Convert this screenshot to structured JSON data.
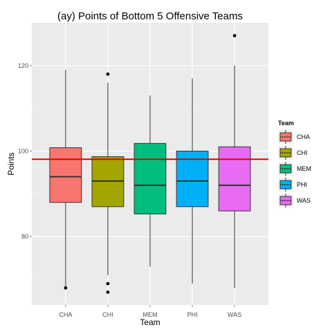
{
  "chart_data": {
    "type": "boxplot",
    "title": "(ay) Points of Bottom 5 Offensive Teams",
    "xlabel": "Team",
    "ylabel": "Points",
    "categories": [
      "CHA",
      "CHI",
      "MEM",
      "PHI",
      "WAS"
    ],
    "ylim": [
      64,
      130
    ],
    "yticks": [
      80,
      100,
      120
    ],
    "grid": true,
    "reference_line": {
      "y": 98.1,
      "color": "#e00000"
    },
    "legend": {
      "title": "Team",
      "position": "right"
    },
    "boxes": [
      {
        "team": "CHA",
        "color": "#F8766D",
        "min": 68,
        "q1": 88,
        "median": 94,
        "q3": 100.8,
        "max": 119,
        "outliers": [
          68
        ]
      },
      {
        "team": "CHI",
        "color": "#A3A500",
        "min": 71,
        "q1": 87,
        "median": 93,
        "q3": 98.7,
        "max": 116,
        "outliers": [
          118,
          69,
          67
        ]
      },
      {
        "team": "MEM",
        "color": "#00BF7D",
        "min": 73,
        "q1": 85.3,
        "median": 92,
        "q3": 101.8,
        "max": 113,
        "outliers": []
      },
      {
        "team": "PHI",
        "color": "#00B0F6",
        "min": 69,
        "q1": 87,
        "median": 93,
        "q3": 100,
        "max": 117,
        "outliers": []
      },
      {
        "team": "WAS",
        "color": "#E76BF3",
        "min": 68,
        "q1": 86,
        "median": 92,
        "q3": 101,
        "max": 120,
        "outliers": [
          127
        ]
      }
    ]
  }
}
